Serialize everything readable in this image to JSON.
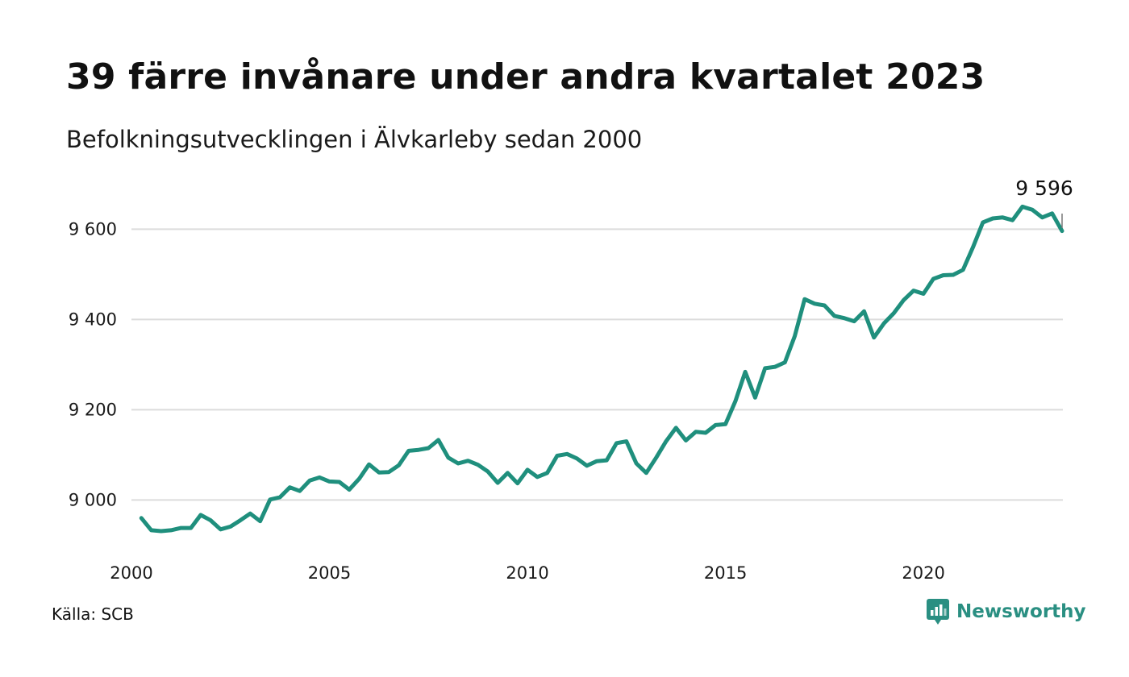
{
  "header": {
    "title": "39 färre invånare under andra kvartalet 2023",
    "subtitle": "Befolkningsutvecklingen i Älvkarleby sedan 2000"
  },
  "footer": {
    "source": "Källa: SCB",
    "brand": "Newsworthy"
  },
  "colors": {
    "line": "#1f8f7d",
    "grid": "#dcdcdc",
    "brand": "#2a8f82"
  },
  "chart_data": {
    "type": "line",
    "title": "39 färre invånare under andra kvartalet 2023",
    "subtitle": "Befolkningsutvecklingen i Älvkarleby sedan 2000",
    "xlabel": "",
    "ylabel": "",
    "xlim": [
      2000.0,
      2023.5
    ],
    "ylim": [
      8890,
      9690
    ],
    "y_ticks": [
      9000,
      9200,
      9400,
      9600
    ],
    "y_tick_labels": [
      "9 000",
      "9 200",
      "9 400",
      "9 600"
    ],
    "x_ticks": [
      2000,
      2005,
      2010,
      2015,
      2020
    ],
    "x_tick_labels": [
      "2000",
      "2005",
      "2010",
      "2015",
      "2020"
    ],
    "grid": "horizontal",
    "end_label": "9 596",
    "series": [
      {
        "x": [
          2000.25,
          2000.5,
          2000.75,
          2001.0,
          2001.25,
          2001.5,
          2001.75,
          2002.0,
          2002.25,
          2002.5,
          2002.75,
          2003.0,
          2003.25,
          2003.5,
          2003.75,
          2004.0,
          2004.25,
          2004.5,
          2004.75,
          2005.0,
          2005.25,
          2005.5,
          2005.75,
          2006.0,
          2006.25,
          2006.5,
          2006.75,
          2007.0,
          2007.25,
          2007.5,
          2007.75,
          2008.0,
          2008.25,
          2008.5,
          2008.75,
          2009.0,
          2009.25,
          2009.5,
          2009.75,
          2010.0,
          2010.25,
          2010.5,
          2010.75,
          2011.0,
          2011.25,
          2011.5,
          2011.75,
          2012.0,
          2012.25,
          2012.5,
          2012.75,
          2013.0,
          2013.25,
          2013.5,
          2013.75,
          2014.0,
          2014.25,
          2014.5,
          2014.75,
          2015.0,
          2015.25,
          2015.5,
          2015.75,
          2016.0,
          2016.25,
          2016.5,
          2016.75,
          2017.0,
          2017.25,
          2017.5,
          2017.75,
          2018.0,
          2018.25,
          2018.5,
          2018.75,
          2019.0,
          2019.25,
          2019.5,
          2019.75,
          2020.0,
          2020.25,
          2020.5,
          2020.75,
          2021.0,
          2021.25,
          2021.5,
          2021.75,
          2022.0,
          2022.25,
          2022.5,
          2022.75,
          2023.0,
          2023.25,
          2023.5
        ],
        "values": [
          8960,
          8933,
          8931,
          8933,
          8938,
          8938,
          8967,
          8955,
          8935,
          8941,
          8955,
          8970,
          8953,
          9001,
          9006,
          9028,
          9020,
          9043,
          9050,
          9041,
          9040,
          9023,
          9047,
          9079,
          9061,
          9062,
          9077,
          9109,
          9111,
          9115,
          9133,
          9094,
          9081,
          9087,
          9078,
          9063,
          9038,
          9060,
          9037,
          9067,
          9051,
          9060,
          9098,
          9102,
          9092,
          9076,
          9086,
          9088,
          9126,
          9130,
          9081,
          9060,
          9094,
          9130,
          9160,
          9132,
          9151,
          9149,
          9166,
          9168,
          9219,
          9284,
          9227,
          9292,
          9295,
          9305,
          9363,
          9445,
          9435,
          9431,
          9408,
          9403,
          9396,
          9418,
          9360,
          9391,
          9414,
          9443,
          9464,
          9457,
          9490,
          9498,
          9499,
          9510,
          9560,
          9615,
          9624,
          9626,
          9620,
          9650,
          9643,
          9626,
          9635,
          9596
        ]
      }
    ]
  }
}
